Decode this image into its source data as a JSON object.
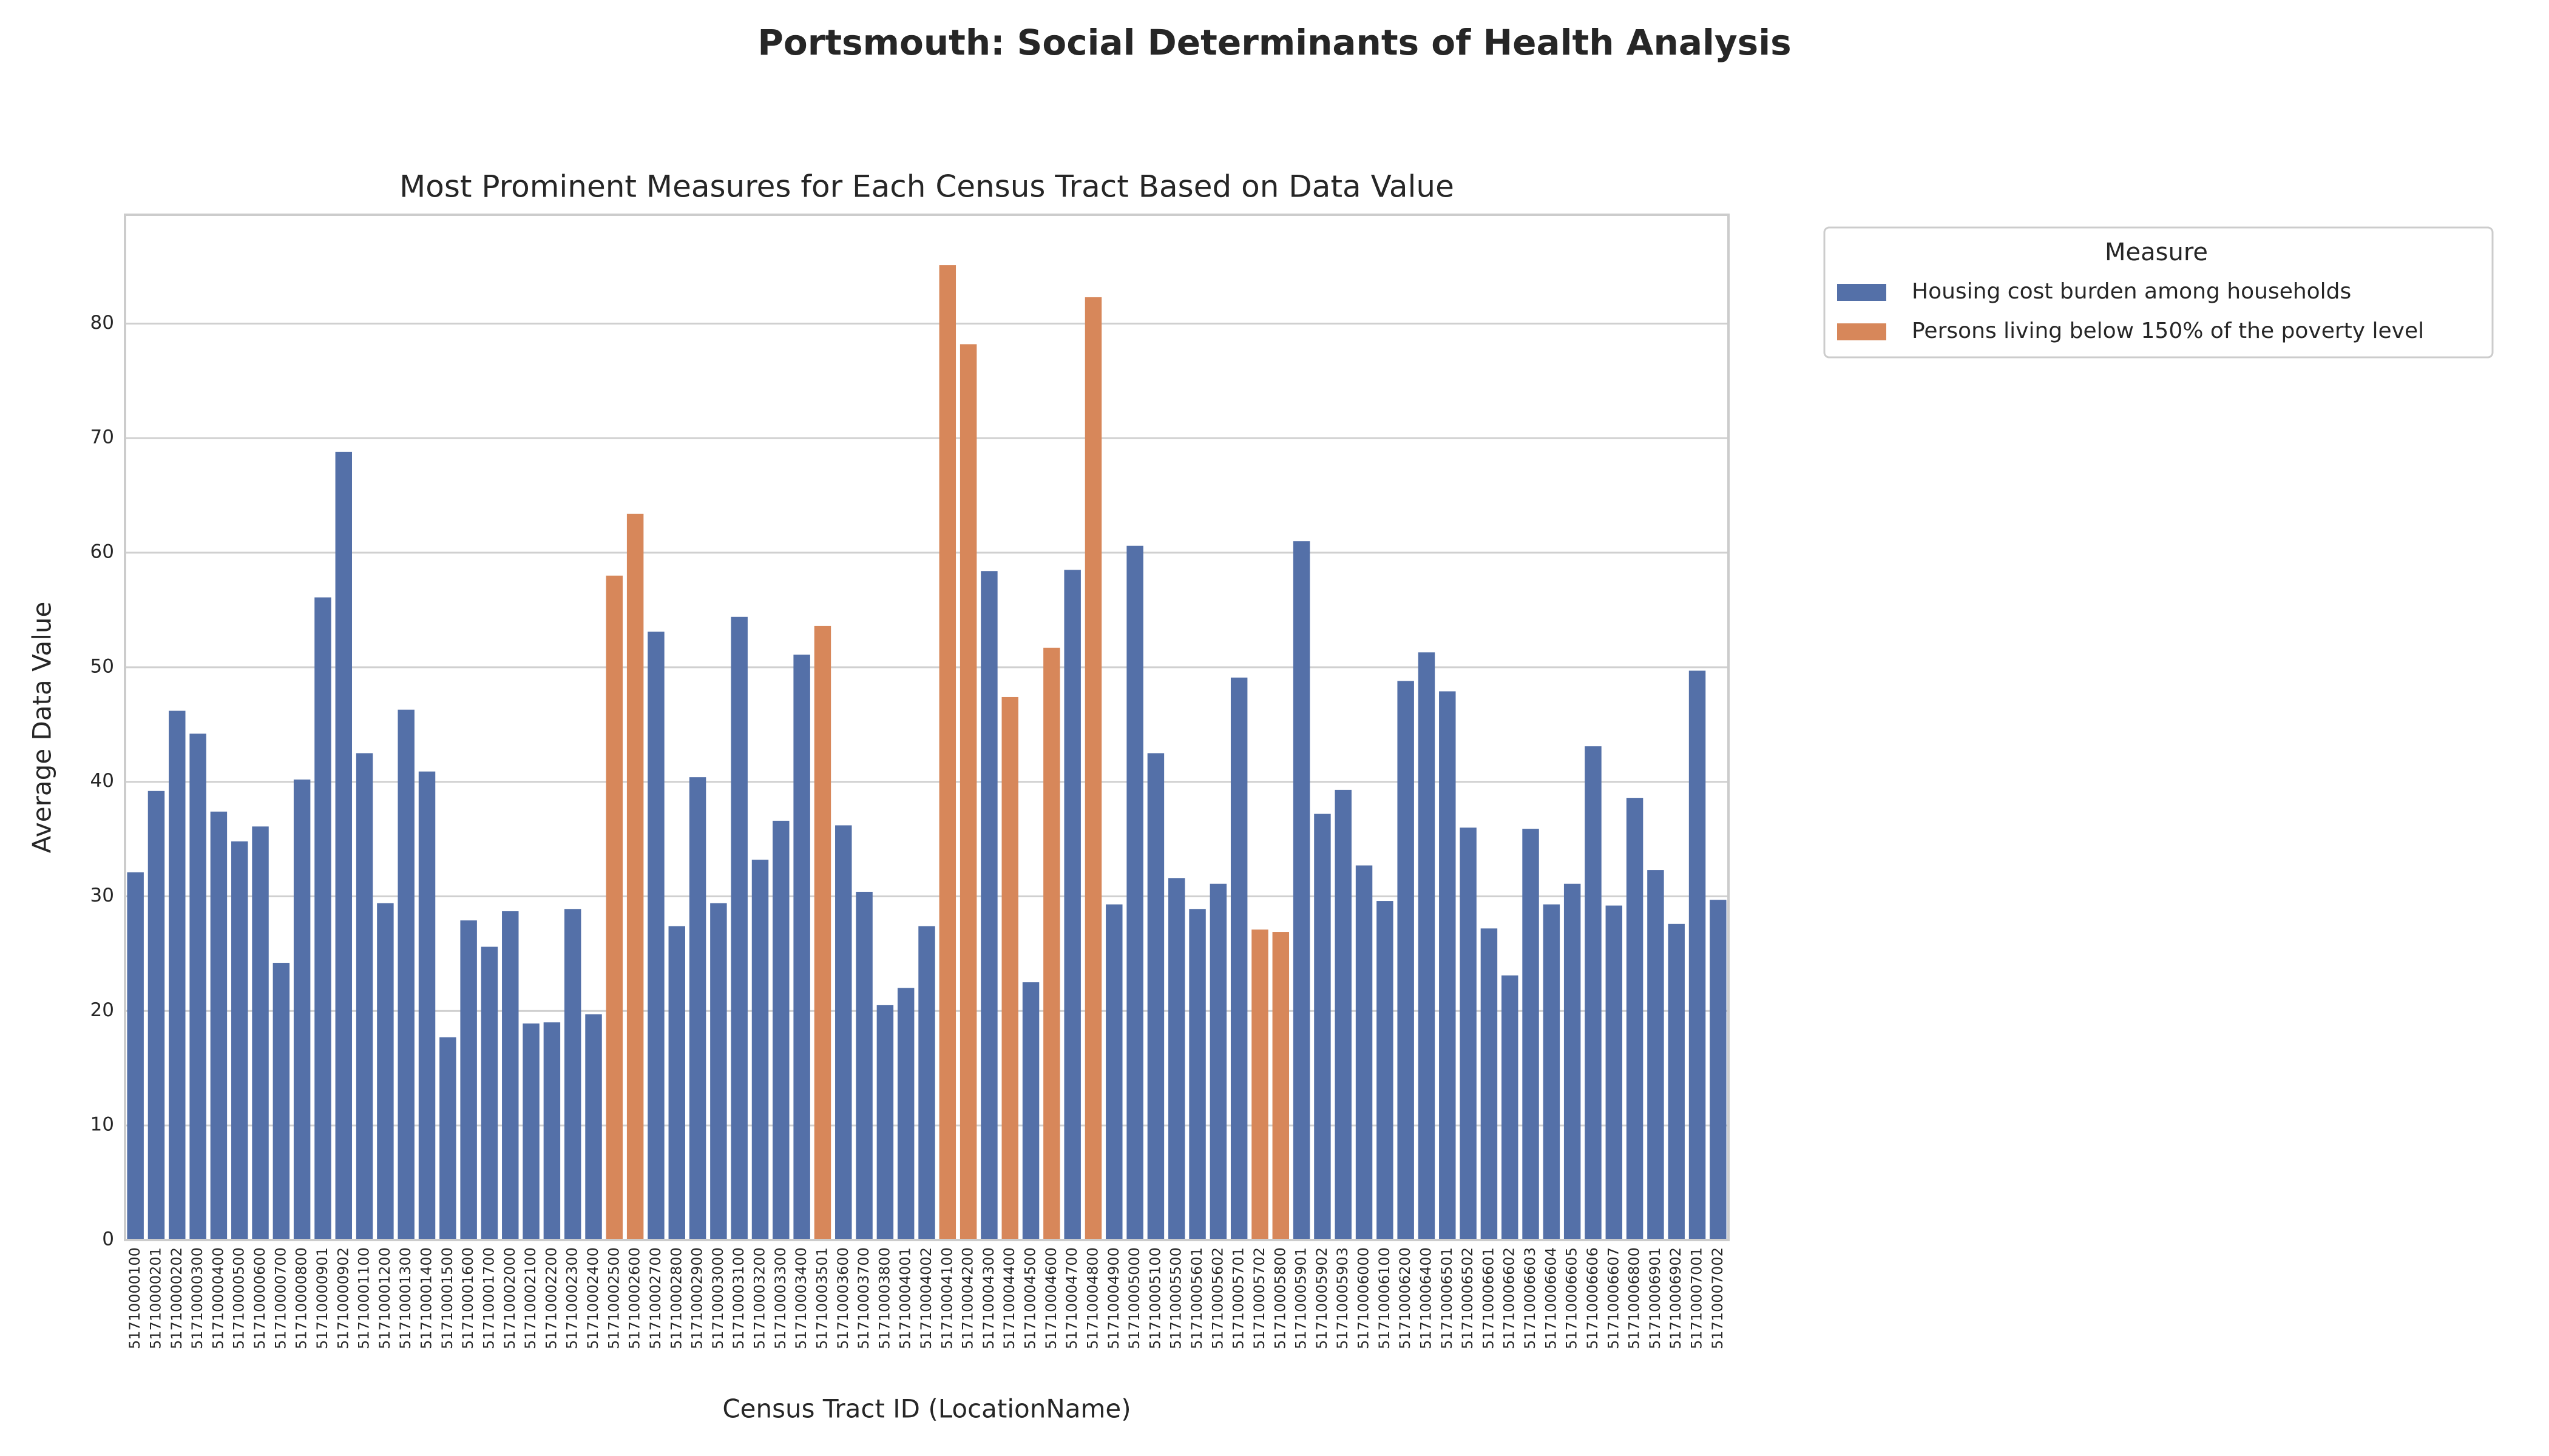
{
  "chart_data": {
    "type": "bar",
    "title": "Portsmouth: Social Determinants of Health Analysis",
    "subtitle": "Most Prominent Measures for Each Census Tract Based on Data Value",
    "x_label": "Census Tract ID (LocationName)",
    "y_label": "Average Data Value",
    "legend_title": "Measure",
    "legend_position": "outside right",
    "grid": true,
    "ylim": [
      0,
      89.5
    ],
    "yticks": [
      0,
      10,
      20,
      30,
      40,
      50,
      60,
      70,
      80
    ],
    "categories": [
      "51710000100",
      "51710000201",
      "51710000202",
      "51710000300",
      "51710000400",
      "51710000500",
      "51710000600",
      "51710000700",
      "51710000800",
      "51710000901",
      "51710000902",
      "51710001100",
      "51710001200",
      "51710001300",
      "51710001400",
      "51710001500",
      "51710001600",
      "51710001700",
      "51710002000",
      "51710002100",
      "51710002200",
      "51710002300",
      "51710002400",
      "51710002500",
      "51710002600",
      "51710002700",
      "51710002800",
      "51710002900",
      "51710003000",
      "51710003100",
      "51710003200",
      "51710003300",
      "51710003400",
      "51710003501",
      "51710003600",
      "51710003700",
      "51710003800",
      "51710004001",
      "51710004002",
      "51710004100",
      "51710004200",
      "51710004300",
      "51710004400",
      "51710004500",
      "51710004600",
      "51710004700",
      "51710004800",
      "51710004900",
      "51710005000",
      "51710005100",
      "51710005500",
      "51710005601",
      "51710005602",
      "51710005701",
      "51710005702",
      "51710005800",
      "51710005901",
      "51710005902",
      "51710005903",
      "51710006000",
      "51710006100",
      "51710006200",
      "51710006400",
      "51710006501",
      "51710006502",
      "51710006601",
      "51710006602",
      "51710006603",
      "51710006604",
      "51710006605",
      "51710006606",
      "51710006607",
      "51710006800",
      "51710006901",
      "51710006902",
      "51710007001",
      "51710007002"
    ],
    "series": [
      {
        "name": "Housing cost burden among households",
        "color": "#5470a8",
        "values": [
          32.1,
          39.2,
          46.2,
          44.2,
          37.4,
          34.8,
          36.1,
          24.2,
          40.2,
          56.1,
          68.8,
          42.5,
          29.4,
          46.3,
          40.9,
          17.7,
          27.9,
          25.6,
          28.7,
          18.9,
          19.0,
          28.9,
          19.7,
          null,
          null,
          53.1,
          27.4,
          40.4,
          29.4,
          54.4,
          33.2,
          36.6,
          51.1,
          null,
          36.2,
          30.4,
          20.5,
          22.0,
          27.4,
          null,
          null,
          58.4,
          null,
          22.5,
          null,
          58.5,
          null,
          29.3,
          60.6,
          42.5,
          31.6,
          28.9,
          31.1,
          49.1,
          null,
          null,
          61.0,
          37.2,
          39.3,
          32.7,
          29.6,
          48.8,
          51.3,
          47.9,
          36.0,
          27.2,
          23.1,
          35.9,
          29.3,
          31.1,
          43.1,
          29.2,
          38.6,
          32.3,
          27.6,
          49.7,
          29.7
        ]
      },
      {
        "name": "Persons living below 150% of the poverty level",
        "color": "#d7875a",
        "values": [
          null,
          null,
          null,
          null,
          null,
          null,
          null,
          null,
          null,
          null,
          null,
          null,
          null,
          null,
          null,
          null,
          null,
          null,
          null,
          null,
          null,
          null,
          null,
          58.0,
          63.4,
          null,
          null,
          null,
          null,
          null,
          null,
          null,
          null,
          53.6,
          null,
          null,
          null,
          null,
          null,
          85.1,
          78.2,
          null,
          47.4,
          null,
          51.7,
          null,
          82.3,
          null,
          null,
          null,
          null,
          null,
          null,
          null,
          27.1,
          26.9,
          null,
          null,
          null,
          null,
          null,
          null,
          null,
          null,
          null,
          null,
          null,
          null,
          null,
          null,
          null,
          null,
          null,
          null,
          null,
          null,
          null
        ]
      }
    ]
  }
}
